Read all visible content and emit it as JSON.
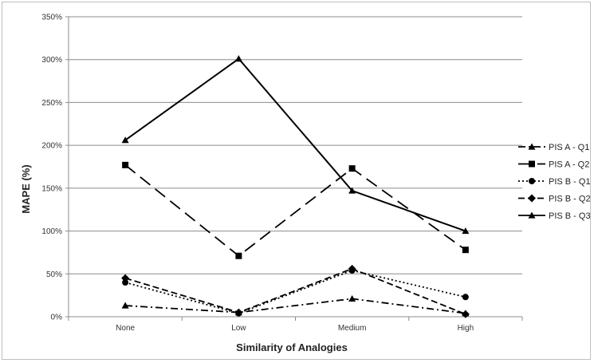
{
  "chart_data": {
    "type": "line",
    "categories": [
      "None",
      "Low",
      "Medium",
      "High"
    ],
    "xlabel": "Similarity of Analogies",
    "ylabel": "MAPE (%)",
    "ylim": [
      0,
      350
    ],
    "yticks": [
      "0%",
      "50%",
      "100%",
      "150%",
      "200%",
      "250%",
      "300%",
      "350%"
    ],
    "grid": "horizontal",
    "legend": "right",
    "series": [
      {
        "name": "PIS A - Q1",
        "values": [
          13,
          5,
          21,
          4
        ],
        "dash": "dashdot",
        "marker": "triangle"
      },
      {
        "name": "PIS A - Q2",
        "values": [
          177,
          71,
          173,
          78
        ],
        "dash": "longdash",
        "marker": "square"
      },
      {
        "name": "PIS B - Q1",
        "values": [
          40,
          4,
          54,
          23
        ],
        "dash": "dotted",
        "marker": "circle"
      },
      {
        "name": "PIS B - Q2",
        "values": [
          45,
          5,
          56,
          3
        ],
        "dash": "dashed",
        "marker": "diamond"
      },
      {
        "name": "PIS B - Q3",
        "values": [
          206,
          301,
          147,
          100
        ],
        "dash": "solid",
        "marker": "triangle"
      }
    ]
  }
}
